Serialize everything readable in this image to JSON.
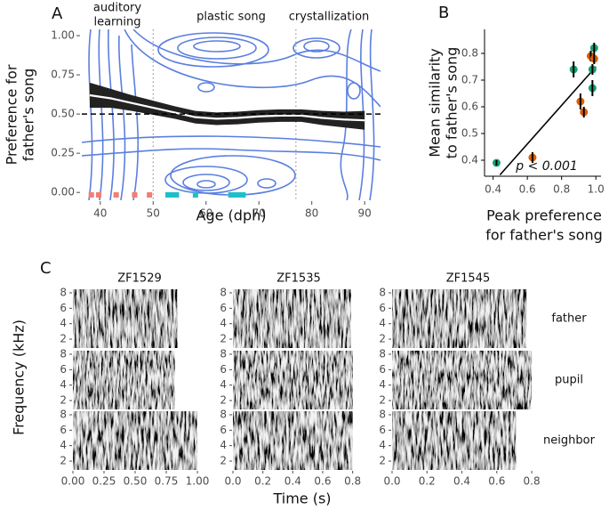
{
  "chart_data": [
    {
      "type": "contour",
      "panel": "A",
      "annotations": [
        [
          "auditory",
          "learning"
        ],
        [
          "plastic song"
        ],
        [
          "crystallization"
        ]
      ],
      "xlabel": "Age (dph)",
      "ylabel": [
        "Preference for",
        "father's song"
      ],
      "xlim": [
        36.5,
        93
      ],
      "ylim": [
        -0.05,
        1.04
      ],
      "xticks": [
        40,
        50,
        60,
        70,
        80,
        90
      ],
      "yticks": [
        {
          "value": 0,
          "label": "0.00"
        },
        {
          "value": 0.25,
          "label": "0.25"
        },
        {
          "value": 0.5,
          "label": "0.50"
        },
        {
          "value": 0.75,
          "label": "0.75"
        },
        {
          "value": 1,
          "label": "1.00"
        }
      ],
      "reference_line": 0.5,
      "phase_boundaries": [
        50,
        77
      ],
      "x": [
        38,
        42,
        46,
        50,
        54,
        58,
        62,
        66,
        70,
        74,
        78,
        82,
        86,
        90
      ],
      "values": [
        0.62,
        0.6,
        0.57,
        0.54,
        0.51,
        0.48,
        0.47,
        0.475,
        0.485,
        0.49,
        0.49,
        0.475,
        0.465,
        0.46
      ],
      "lower": [
        0.54,
        0.54,
        0.52,
        0.495,
        0.47,
        0.44,
        0.43,
        0.435,
        0.445,
        0.45,
        0.45,
        0.43,
        0.415,
        0.4
      ],
      "upper": [
        0.7,
        0.66,
        0.62,
        0.585,
        0.55,
        0.52,
        0.51,
        0.515,
        0.525,
        0.53,
        0.53,
        0.52,
        0.515,
        0.52
      ],
      "line_color": "#ffffff",
      "band_color": "#222222",
      "contour_color": "#5b7fe0",
      "rug": [
        {
          "color": "#f07f72",
          "x": [
            38.3,
            39.7,
            43,
            46.5,
            49.3
          ]
        },
        {
          "color": "#1fbfc8",
          "x": [
            52.8,
            53.6,
            54.4,
            58,
            64.7,
            65.4,
            66.2,
            67
          ]
        }
      ]
    },
    {
      "type": "scatter",
      "panel": "B",
      "xlabel": [
        "Peak preference",
        "for father's song"
      ],
      "ylabel": [
        "Mean similarity",
        "to father's song"
      ],
      "annotation": "p < 0.001",
      "xlim": [
        0.35,
        1.03
      ],
      "ylim": [
        0.34,
        0.89
      ],
      "xticks": [
        0.4,
        0.6,
        0.8,
        {
          "value": 1,
          "label": "1.0"
        }
      ],
      "yticks": [
        0.4,
        0.5,
        0.6,
        0.7,
        0.8
      ],
      "groups": [
        {
          "color": "#1b9e77",
          "x": [
            0.42,
            0.87,
            0.98,
            0.99,
            0.98
          ],
          "y": [
            0.39,
            0.74,
            0.74,
            0.82,
            0.67
          ],
          "yerr": [
            0.01,
            0.03,
            0.02,
            0.02,
            0.03
          ]
        },
        {
          "color": "#d95f02",
          "x": [
            0.63,
            0.91,
            0.93,
            0.97,
            0.99
          ],
          "y": [
            0.41,
            0.62,
            0.58,
            0.79,
            0.78
          ],
          "yerr": [
            0.02,
            0.03,
            0.02,
            0.02,
            0.02
          ]
        }
      ],
      "fit": {
        "x": [
          0.44,
          1
        ],
        "y": [
          0.345,
          0.75
        ]
      }
    },
    {
      "type": "spectrogram",
      "panel": "C",
      "ylabel": "Frequency (kHz)",
      "xlabel": "Time (s)",
      "ylim": [
        0.85,
        8.46
      ],
      "yticks": [
        2,
        4,
        6,
        8
      ],
      "rows": [
        "father",
        "pupil",
        "neighbor"
      ],
      "columns": [
        {
          "title": "ZF1529",
          "xlim": [
            0,
            1
          ],
          "xticks": [
            {
              "value": 0,
              "label": "0.00"
            },
            0.25,
            {
              "value": 0.5,
              "label": "0.50"
            },
            0.75,
            {
              "value": 1,
              "label": "1.00"
            }
          ],
          "durations": [
            0.84,
            0.82,
            1
          ]
        },
        {
          "title": "ZF1535",
          "xlim": [
            0,
            0.82
          ],
          "xticks": [
            {
              "value": 0,
              "label": "0.0"
            },
            0.2,
            0.4,
            0.6,
            0.8
          ],
          "durations": [
            0.79,
            0.8,
            0.8
          ]
        },
        {
          "title": "ZF1545",
          "xlim": [
            0,
            0.82
          ],
          "xticks": [
            {
              "value": 0,
              "label": "0.0"
            },
            0.2,
            0.4,
            0.6,
            0.8
          ],
          "durations": [
            0.77,
            0.8,
            0.71
          ]
        }
      ]
    }
  ]
}
